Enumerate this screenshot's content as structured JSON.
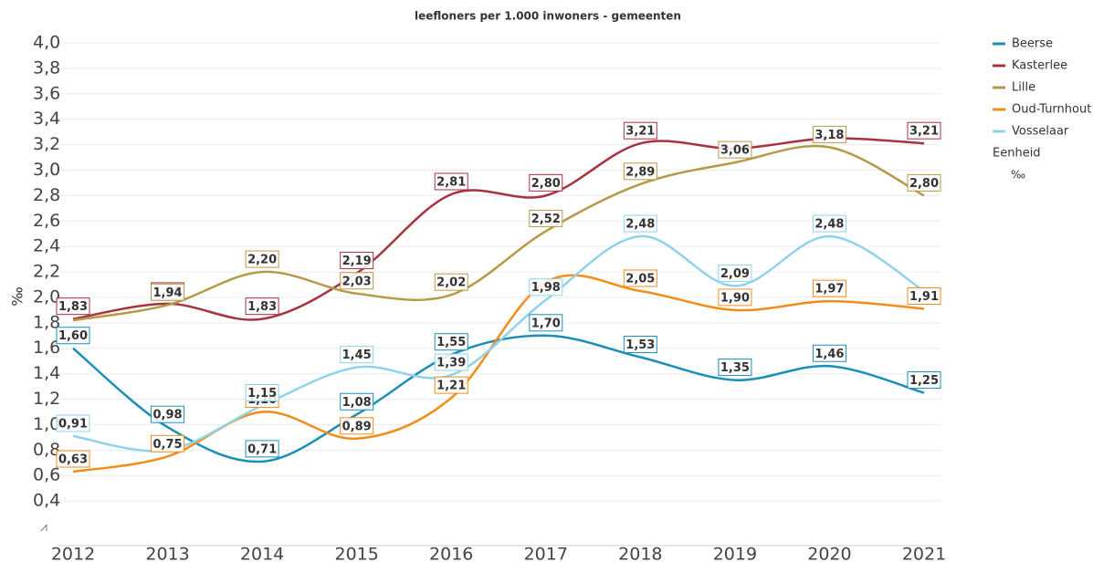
{
  "chart_data": {
    "type": "line",
    "title": "leefloners per 1.000 inwoners - gemeenten",
    "y_label": "‰",
    "legend_title": "Eenheid",
    "legend_unit": "‰",
    "legend_position": "right",
    "categories": [
      "2012",
      "2013",
      "2014",
      "2015",
      "2016",
      "2017",
      "2018",
      "2019",
      "2020",
      "2021"
    ],
    "ylim": [
      0.2,
      4.0
    ],
    "yticks": [
      {
        "value": 0.4,
        "label": "0,4"
      },
      {
        "value": 0.6,
        "label": "0,6"
      },
      {
        "value": 0.8,
        "label": "0,8"
      },
      {
        "value": 1.0,
        "label": "1,0"
      },
      {
        "value": 1.2,
        "label": "1,2"
      },
      {
        "value": 1.4,
        "label": "1,4"
      },
      {
        "value": 1.6,
        "label": "1,6"
      },
      {
        "value": 1.8,
        "label": "1,8"
      },
      {
        "value": 2.0,
        "label": "2,0"
      },
      {
        "value": 2.2,
        "label": "2,2"
      },
      {
        "value": 2.4,
        "label": "2,4"
      },
      {
        "value": 2.6,
        "label": "2,6"
      },
      {
        "value": 2.8,
        "label": "2,8"
      },
      {
        "value": 3.0,
        "label": "3,0"
      },
      {
        "value": 3.2,
        "label": "3,2"
      },
      {
        "value": 3.4,
        "label": "3,4"
      },
      {
        "value": 3.6,
        "label": "3,6"
      },
      {
        "value": 3.8,
        "label": "3,8"
      },
      {
        "value": 4.0,
        "label": "4,0"
      }
    ],
    "grid": true,
    "series": [
      {
        "name": "Beerse",
        "color": "#1a8fb8",
        "values": [
          1.6,
          0.98,
          0.71,
          1.08,
          1.55,
          1.7,
          1.53,
          1.35,
          1.46,
          1.25
        ],
        "value_labels": [
          "1,60",
          "0,98",
          "0,71",
          "1,08",
          "1,55",
          "1,70",
          "1,53",
          "1,35",
          "1,46",
          "1,25"
        ]
      },
      {
        "name": "Kasterlee",
        "color": "#a83240",
        "values": [
          1.83,
          1.95,
          1.83,
          2.19,
          2.81,
          2.8,
          3.21,
          3.17,
          3.25,
          3.21
        ],
        "value_labels": [
          "1,83",
          "1,95",
          "1,83",
          "2,19",
          "2,81",
          "2,80",
          "3,21",
          null,
          null,
          "3,21"
        ]
      },
      {
        "name": "Lille",
        "color": "#b59a47",
        "values": [
          1.82,
          1.94,
          2.2,
          2.03,
          2.02,
          2.52,
          2.89,
          3.06,
          3.18,
          2.8
        ],
        "value_labels": [
          null,
          "1,94",
          "2,20",
          "2,03",
          "2,02",
          "2,52",
          "2,89",
          "3,06",
          "3,18",
          "2,80"
        ]
      },
      {
        "name": "Oud-Turnhout",
        "color": "#f28c1c",
        "values": [
          0.63,
          0.75,
          1.1,
          0.89,
          1.21,
          2.12,
          2.05,
          1.9,
          1.97,
          1.91
        ],
        "value_labels": [
          "0,63",
          "0,75",
          "1,10",
          "0,89",
          "1,21",
          null,
          "2,05",
          "1,90",
          "1,97",
          "1,91"
        ]
      },
      {
        "name": "Vosselaar",
        "color": "#8fd3ea",
        "values": [
          0.91,
          0.8,
          1.15,
          1.45,
          1.39,
          1.98,
          2.48,
          2.09,
          2.48,
          2.05
        ],
        "value_labels": [
          "0,91",
          null,
          "1,15",
          "1,45",
          "1,39",
          "1,98",
          "2,48",
          "2,09",
          "2,48",
          null
        ]
      }
    ]
  }
}
